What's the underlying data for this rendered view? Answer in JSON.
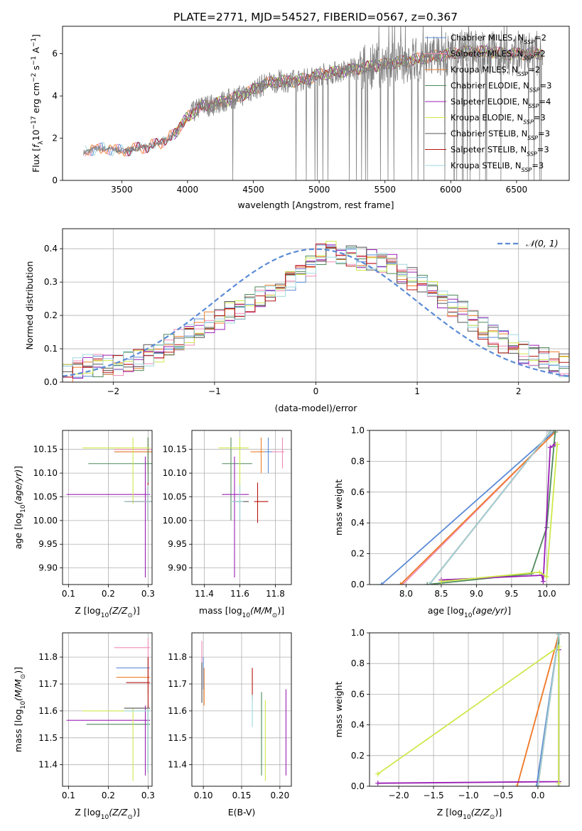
{
  "figure": {
    "title": "PLATE=2771, MJD=54527, FIBERID=0567, z=0.367"
  },
  "models": [
    {
      "name": "Chabrier MILES, N_SSP=2",
      "label": "Chabrier MILES, N",
      "sub": "SSP",
      "tail": "=2",
      "color": "#5b8bd6"
    },
    {
      "name": "Salpeter MILES, N_SSP=2",
      "label": "Salpeter MILES, N",
      "sub": "SSP",
      "tail": "=2",
      "color": "#f08ab6"
    },
    {
      "name": "Kroupa MILES, N_SSP=2",
      "label": "Kroupa MILES, N",
      "sub": "SSP",
      "tail": "=2",
      "color": "#ee7f2a"
    },
    {
      "name": "Chabrier ELODIE, N_SSP=3",
      "label": "Chabrier ELODIE, N",
      "sub": "SSP",
      "tail": "=3",
      "color": "#4f8a5b"
    },
    {
      "name": "Salpeter ELODIE, N_SSP=4",
      "label": "Salpeter ELODIE, N",
      "sub": "SSP",
      "tail": "=4",
      "color": "#9a1fb5"
    },
    {
      "name": "Kroupa ELODIE, N_SSP=3",
      "label": "Kroupa ELODIE, N",
      "sub": "SSP",
      "tail": "=3",
      "color": "#cde84a"
    },
    {
      "name": "Chabrier STELIB, N_SSP=3",
      "label": "Chabrier STELIB, N",
      "sub": "SSP",
      "tail": "=3",
      "color": "#555555"
    },
    {
      "name": "Salpeter STELIB, N_SSP=3",
      "label": "Salpeter STELIB, N",
      "sub": "SSP",
      "tail": "=3",
      "color": "#b81414"
    },
    {
      "name": "Kroupa STELIB, N_SSP=3",
      "label": "Kroupa STELIB, N",
      "sub": "SSP",
      "tail": "=3",
      "color": "#9fd8dc"
    }
  ],
  "chart_data": [
    {
      "id": "spectrum",
      "type": "line",
      "xlabel": "wavelength [Angstrom, rest frame]",
      "ylabel_main": "Flux [",
      "ylabel_f": "f",
      "ylabel_fsub": "λ",
      "ylabel_rest": "10",
      "ylabel_exp1": "−17",
      "ylabel_unit": " erg cm",
      "ylabel_exp2": "−2",
      "ylabel_s": " s",
      "ylabel_exp3": "−1",
      "ylabel_A": " A",
      "ylabel_exp4": "−1",
      "ylabel_end": "]",
      "xlim": [
        3050,
        6900
      ],
      "ylim": [
        0,
        7.3
      ],
      "xticks": [
        3500,
        4000,
        4500,
        5000,
        5500,
        6000,
        6500
      ],
      "yticks": [
        0,
        2,
        4,
        6
      ],
      "approx_continuum": {
        "x": [
          3200,
          3300,
          3400,
          3500,
          3600,
          3700,
          3800,
          3900,
          4000,
          4100,
          4200,
          4300,
          4400,
          4500,
          4600,
          4700,
          4800,
          4900,
          5000,
          5100,
          5200,
          5300,
          5400,
          5500,
          5600,
          5700,
          5800,
          5900,
          6000,
          6100,
          6200,
          6300,
          6400,
          6500,
          6600
        ],
        "y": [
          1.3,
          1.5,
          1.5,
          1.4,
          1.5,
          1.6,
          1.8,
          2.2,
          3.0,
          3.5,
          3.6,
          3.8,
          4.0,
          4.3,
          4.6,
          4.7,
          4.7,
          4.8,
          5.0,
          5.1,
          5.2,
          5.3,
          5.4,
          5.5,
          5.6,
          5.7,
          5.8,
          5.9,
          6.0,
          6.1,
          6.1,
          6.1,
          6.0,
          6.0,
          6.0
        ]
      }
    },
    {
      "id": "residuals",
      "type": "line",
      "xlabel": "(data-model)/error",
      "ylabel": "Normed distribution",
      "xlim": [
        -2.5,
        2.5
      ],
      "ylim": [
        0,
        0.46
      ],
      "xticks": [
        -2,
        -1,
        0,
        1,
        2
      ],
      "yticks": [
        0.0,
        0.1,
        0.2,
        0.3,
        0.4
      ],
      "legend": "𝒩(0, 1)",
      "bin_edges_start": -2.5,
      "bin_width": 0.1,
      "approx_hist_mean": [
        0.03,
        0.04,
        0.05,
        0.05,
        0.05,
        0.05,
        0.06,
        0.07,
        0.08,
        0.09,
        0.11,
        0.13,
        0.14,
        0.16,
        0.18,
        0.19,
        0.21,
        0.22,
        0.24,
        0.26,
        0.27,
        0.29,
        0.31,
        0.33,
        0.35,
        0.38,
        0.39,
        0.39,
        0.38,
        0.37,
        0.37,
        0.36,
        0.35,
        0.33,
        0.31,
        0.29,
        0.27,
        0.25,
        0.23,
        0.21,
        0.18,
        0.16,
        0.14,
        0.12,
        0.11,
        0.09,
        0.08,
        0.07,
        0.06,
        0.05
      ]
    },
    {
      "id": "age_vs_Z",
      "type": "scatter",
      "xlabel": "Z [log",
      "xlabel_sub": "10",
      "xlabel_math": "(Z/Z",
      "xlabel_sun": "⊙",
      "xlabel_end": ")]",
      "ylabel": "age  [log",
      "ylabel_sub": "10",
      "ylabel_math": "(age/yr)",
      "ylabel_end": "]",
      "xlim": [
        0.085,
        0.31
      ],
      "ylim": [
        9.865,
        10.19
      ],
      "xticks": [
        0.1,
        0.2,
        0.3
      ],
      "yticks": [
        9.9,
        9.95,
        10.0,
        10.05,
        10.1,
        10.15
      ],
      "points": [
        {
          "model": 0,
          "x": 0.3,
          "y": 10.145,
          "xerr": [
            0.215,
            0.31
          ],
          "yerr": [
            10.1,
            10.175
          ]
        },
        {
          "model": 1,
          "x": 0.3,
          "y": 10.15,
          "xerr": [
            0.215,
            0.31
          ],
          "yerr": [
            10.12,
            10.175
          ]
        },
        {
          "model": 2,
          "x": 0.3,
          "y": 10.145,
          "xerr": [
            0.215,
            0.31
          ],
          "yerr": [
            10.1,
            10.175
          ]
        },
        {
          "model": 3,
          "x": 0.3,
          "y": 10.12,
          "xerr": [
            0.15,
            0.31
          ],
          "yerr": [
            10.0,
            10.175
          ]
        },
        {
          "model": 4,
          "x": 0.293,
          "y": 10.055,
          "xerr": [
            0.095,
            0.305
          ],
          "yerr": [
            9.88,
            10.135
          ]
        },
        {
          "model": 5,
          "x": 0.262,
          "y": 10.153,
          "xerr": [
            0.135,
            0.305
          ],
          "yerr": [
            10.035,
            10.175
          ]
        },
        {
          "model": 6,
          "x": 0.3,
          "y": 10.04,
          "xerr": [
            0.24,
            0.31
          ],
          "yerr": [
            10.0,
            10.075
          ]
        },
        {
          "model": 7,
          "x": 0.3,
          "y": 10.04,
          "xerr": [
            0.245,
            0.31
          ],
          "yerr": [
            10.0,
            10.08
          ]
        },
        {
          "model": 8,
          "x": 0.3,
          "y": 10.04,
          "xerr": [
            0.24,
            0.31
          ],
          "yerr": [
            10.0,
            10.075
          ]
        }
      ]
    },
    {
      "id": "age_vs_mass",
      "type": "scatter",
      "xlabel": "mass [log",
      "xlabel_sub": "10",
      "xlabel_math": "(M/M",
      "xlabel_sun": "⊙",
      "xlabel_end": ")]",
      "xlim": [
        11.33,
        11.89
      ],
      "ylim": [
        9.865,
        10.19
      ],
      "xticks": [
        11.4,
        11.6,
        11.8
      ],
      "yticks": [
        9.9,
        9.95,
        10.0,
        10.05,
        10.1,
        10.15
      ],
      "points": [
        {
          "model": 0,
          "x": 11.76,
          "y": 10.145,
          "xerr": [
            11.7,
            11.79
          ],
          "yerr": [
            10.1,
            10.175
          ]
        },
        {
          "model": 1,
          "x": 11.84,
          "y": 10.145,
          "xerr": [
            11.78,
            11.85
          ],
          "yerr": [
            10.11,
            10.175
          ]
        },
        {
          "model": 2,
          "x": 11.72,
          "y": 10.145,
          "xerr": [
            11.66,
            11.74
          ],
          "yerr": [
            10.1,
            10.175
          ]
        },
        {
          "model": 3,
          "x": 11.55,
          "y": 10.12,
          "xerr": [
            11.5,
            11.67
          ],
          "yerr": [
            10.0,
            10.175
          ]
        },
        {
          "model": 4,
          "x": 11.57,
          "y": 10.055,
          "xerr": [
            11.5,
            11.65
          ],
          "yerr": [
            9.88,
            10.135
          ]
        },
        {
          "model": 5,
          "x": 11.6,
          "y": 10.153,
          "xerr": [
            11.48,
            11.65
          ],
          "yerr": [
            10.035,
            10.175
          ]
        },
        {
          "model": 6,
          "x": 11.6,
          "y": 10.04,
          "xerr": [
            11.56,
            11.65
          ],
          "yerr": [
            10.0,
            10.075
          ]
        },
        {
          "model": 7,
          "x": 11.7,
          "y": 10.04,
          "xerr": [
            11.68,
            11.76
          ],
          "yerr": [
            9.995,
            10.08
          ]
        },
        {
          "model": 8,
          "x": 11.6,
          "y": 10.04,
          "xerr": [
            11.55,
            11.62
          ],
          "yerr": [
            10.0,
            10.075
          ]
        }
      ]
    },
    {
      "id": "mass_weight_vs_age",
      "type": "line",
      "xlabel": "age  [log",
      "xlabel_sub": "10",
      "xlabel_math": "(age/yr)",
      "xlabel_end": "]",
      "ylabel": "mass weight",
      "xlim": [
        7.48,
        10.32
      ],
      "ylim": [
        0,
        1.0
      ],
      "xticks": [
        8.0,
        8.5,
        9.0,
        9.5,
        10.0
      ],
      "yticks": [
        0.0,
        0.2,
        0.4,
        0.6,
        0.8,
        1.0
      ],
      "series": [
        {
          "model": 0,
          "x": [
            7.65,
            10.1
          ],
          "y": [
            0.0,
            0.99
          ]
        },
        {
          "model": 1,
          "x": [
            7.95,
            10.12
          ],
          "y": [
            0.0,
            0.99
          ]
        },
        {
          "model": 2,
          "x": [
            7.92,
            10.12
          ],
          "y": [
            0.0,
            0.99
          ]
        },
        {
          "model": 3,
          "x": [
            8.3,
            9.78,
            10.0,
            10.12
          ],
          "y": [
            0.0,
            0.07,
            0.37,
            0.99
          ]
        },
        {
          "model": 4,
          "x": [
            8.5,
            9.93,
            9.95,
            10.05,
            10.12
          ],
          "y": [
            0.03,
            0.06,
            0.02,
            0.89,
            0.91
          ]
        },
        {
          "model": 5,
          "x": [
            8.5,
            9.9,
            10.0,
            10.15
          ],
          "y": [
            0.02,
            0.08,
            0.05,
            0.91
          ]
        },
        {
          "model": 6,
          "x": [
            8.33,
            10.05
          ],
          "y": [
            0.0,
            0.99
          ]
        },
        {
          "model": 7,
          "x": [
            8.33,
            10.05
          ],
          "y": [
            0.0,
            0.99
          ]
        },
        {
          "model": 8,
          "x": [
            8.33,
            10.05
          ],
          "y": [
            0.0,
            0.99
          ]
        }
      ]
    },
    {
      "id": "mass_vs_Z",
      "type": "scatter",
      "xlabel": "Z [log",
      "xlabel_sub": "10",
      "xlabel_math": "(Z/Z",
      "xlabel_sun": "⊙",
      "xlabel_end": ")]",
      "ylabel": "mass [log",
      "ylabel_sub": "10",
      "ylabel_math": "(M/M",
      "ylabel_sun": "⊙",
      "ylabel_end": ")]",
      "xlim": [
        0.085,
        0.31
      ],
      "ylim": [
        11.32,
        11.89
      ],
      "xticks": [
        0.1,
        0.2,
        0.3
      ],
      "yticks": [
        11.4,
        11.5,
        11.6,
        11.7,
        11.8
      ],
      "points": [
        {
          "model": 0,
          "x": 0.3,
          "y": 11.76,
          "xerr": [
            0.22,
            0.305
          ],
          "yerr": [
            11.7,
            11.8
          ]
        },
        {
          "model": 1,
          "x": 0.3,
          "y": 11.835,
          "xerr": [
            0.215,
            0.305
          ],
          "yerr": [
            11.78,
            11.87
          ]
        },
        {
          "model": 2,
          "x": 0.3,
          "y": 11.725,
          "xerr": [
            0.22,
            0.305
          ],
          "yerr": [
            11.66,
            11.76
          ]
        },
        {
          "model": 3,
          "x": 0.3,
          "y": 11.55,
          "xerr": [
            0.145,
            0.305
          ],
          "yerr": [
            11.38,
            11.6
          ]
        },
        {
          "model": 4,
          "x": 0.293,
          "y": 11.565,
          "xerr": [
            0.095,
            0.305
          ],
          "yerr": [
            11.36,
            11.62
          ]
        },
        {
          "model": 5,
          "x": 0.262,
          "y": 11.6,
          "xerr": [
            0.135,
            0.305
          ],
          "yerr": [
            11.34,
            11.61
          ]
        },
        {
          "model": 6,
          "x": 0.3,
          "y": 11.61,
          "xerr": [
            0.24,
            0.305
          ],
          "yerr": [
            11.37,
            11.62
          ]
        },
        {
          "model": 7,
          "x": 0.3,
          "y": 11.705,
          "xerr": [
            0.245,
            0.305
          ],
          "yerr": [
            11.6,
            11.8
          ]
        },
        {
          "model": 8,
          "x": 0.3,
          "y": 11.6,
          "xerr": [
            0.24,
            0.305
          ],
          "yerr": [
            11.37,
            11.61
          ]
        }
      ]
    },
    {
      "id": "mass_vs_EBV",
      "type": "scatter",
      "xlabel": "E(B-V)",
      "xlim": [
        0.085,
        0.215
      ],
      "ylim": [
        11.32,
        11.89
      ],
      "xticks": [
        0.1,
        0.15,
        0.2
      ],
      "yticks": [
        11.4,
        11.5,
        11.6,
        11.7,
        11.8
      ],
      "points": [
        {
          "model": 0,
          "x": 0.1,
          "y": 11.76,
          "yerr": [
            11.68,
            11.8
          ]
        },
        {
          "model": 1,
          "x": 0.098,
          "y": 11.8,
          "yerr": [
            11.72,
            11.86
          ]
        },
        {
          "model": 2,
          "x": 0.101,
          "y": 11.68,
          "yerr": [
            11.62,
            11.76
          ]
        },
        {
          "model": 3,
          "x": 0.176,
          "y": 11.52,
          "yerr": [
            11.36,
            11.67
          ]
        },
        {
          "model": 4,
          "x": 0.208,
          "y": 11.52,
          "yerr": [
            11.36,
            11.68
          ]
        },
        {
          "model": 5,
          "x": 0.181,
          "y": 11.5,
          "yerr": [
            11.34,
            11.64
          ]
        },
        {
          "model": 6,
          "x": 0.098,
          "y": 11.7,
          "yerr": [
            11.63,
            11.78
          ]
        },
        {
          "model": 7,
          "x": 0.164,
          "y": 11.7,
          "yerr": [
            11.64,
            11.76
          ]
        },
        {
          "model": 8,
          "x": 0.164,
          "y": 11.6,
          "yerr": [
            11.54,
            11.66
          ]
        }
      ]
    },
    {
      "id": "mass_weight_vs_Z",
      "type": "line",
      "xlabel": "Z [log",
      "xlabel_sub": "10",
      "xlabel_math": "(Z/Z",
      "xlabel_sun": "⊙",
      "xlabel_end": ")]",
      "ylabel": "mass weight",
      "xlim": [
        -2.42,
        0.45
      ],
      "ylim": [
        0,
        1.0
      ],
      "xticks": [
        -2.0,
        -1.5,
        -1.0,
        -0.5,
        0.0
      ],
      "yticks": [
        0.0,
        0.2,
        0.4,
        0.6,
        0.8,
        1.0
      ],
      "series": [
        {
          "model": 0,
          "x": [
            -0.02,
            0.3
          ],
          "y": [
            0.0,
            0.99
          ]
        },
        {
          "model": 1,
          "x": [
            -0.3,
            0.3
          ],
          "y": [
            0.0,
            0.99
          ]
        },
        {
          "model": 2,
          "x": [
            -0.3,
            0.3
          ],
          "y": [
            0.0,
            0.99
          ]
        },
        {
          "model": 3,
          "x": [
            0.3,
            0.3
          ],
          "y": [
            0.0,
            0.99
          ]
        },
        {
          "model": 4,
          "x": [
            -2.3,
            0.3,
            0.3
          ],
          "y": [
            0.02,
            0.03,
            0.89
          ]
        },
        {
          "model": 5,
          "x": [
            -2.3,
            0.3,
            0.3
          ],
          "y": [
            0.08,
            0.91,
            0.02
          ]
        },
        {
          "model": 6,
          "x": [
            0.0,
            0.3
          ],
          "y": [
            0.0,
            0.99
          ]
        },
        {
          "model": 7,
          "x": [
            0.0,
            0.3
          ],
          "y": [
            0.0,
            0.99
          ]
        },
        {
          "model": 8,
          "x": [
            0.0,
            0.3
          ],
          "y": [
            0.0,
            0.99
          ]
        }
      ]
    }
  ]
}
